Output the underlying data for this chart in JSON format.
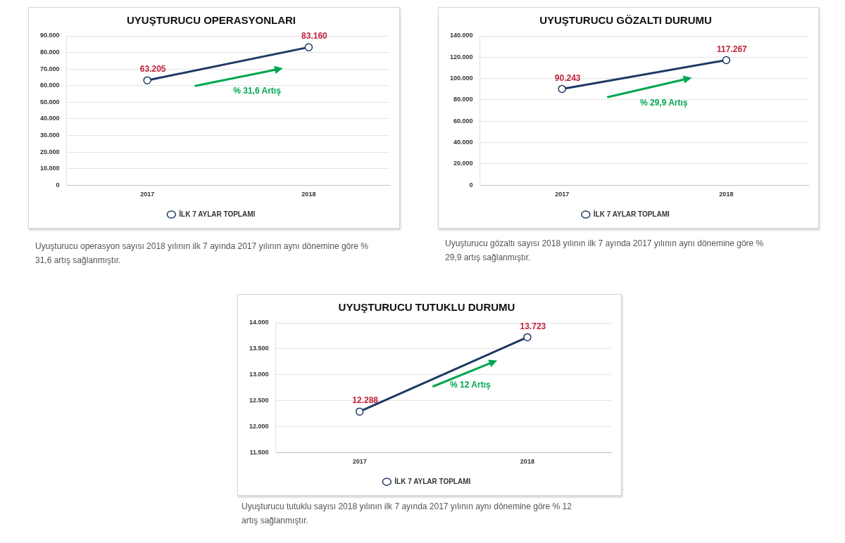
{
  "chart_data": [
    {
      "type": "line",
      "title": "UYUŞTURUCU OPERASYONLARI",
      "categories": [
        "2017",
        "2018"
      ],
      "series": [
        {
          "name": "İLK 7 AYLAR TOPLAMI",
          "color": "#1f3864",
          "values": [
            63205,
            83160
          ],
          "value_labels": [
            "63.205",
            "83.160"
          ]
        }
      ],
      "ylim": [
        0,
        90000
      ],
      "yticks": [
        0,
        {
          "value": 10000,
          "label": "10.000"
        },
        {
          "value": 20000,
          "label": "20.000"
        },
        {
          "value": 30000,
          "label": "30.000"
        },
        {
          "value": 40000,
          "label": "40.000"
        },
        {
          "value": 50000,
          "label": "50.000"
        },
        {
          "value": 60000,
          "label": "60.000"
        },
        {
          "value": 70000,
          "label": "70.000"
        },
        {
          "value": 80000,
          "label": "80.000"
        },
        {
          "value": 90000,
          "label": "90.000"
        }
      ],
      "grid": "y",
      "legend": "bottom",
      "marker": "circle",
      "line_style": "solid",
      "annotations": [
        "% 31,6 Artış",
        "Uyuşturucu operasyon sayısı 2018 yılının ilk 7 ayında 2017 yılının aynı dönemine göre % 31,6 artış sağlanmıştır."
      ]
    },
    {
      "type": "line",
      "title": "UYUŞTURUCU GÖZALTI DURUMU",
      "categories": [
        "2017",
        "2018"
      ],
      "series": [
        {
          "name": "İLK 7 AYLAR TOPLAMI",
          "color": "#1f3864",
          "values": [
            90243,
            117267
          ],
          "value_labels": [
            "90.243",
            "117.267"
          ]
        }
      ],
      "ylim": [
        0,
        140000
      ],
      "yticks": [
        0,
        {
          "value": 20000,
          "label": "20.000"
        },
        {
          "value": 40000,
          "label": "40.000"
        },
        {
          "value": 60000,
          "label": "60.000"
        },
        {
          "value": 80000,
          "label": "80.000"
        },
        {
          "value": 100000,
          "label": "100.000"
        },
        {
          "value": 120000,
          "label": "120.000"
        },
        {
          "value": 140000,
          "label": "140.000"
        }
      ],
      "grid": "y",
      "legend": "bottom",
      "marker": "circle",
      "line_style": "solid",
      "annotations": [
        "% 29,9 Artış",
        "Uyuşturucu gözaltı sayısı 2018 yılının ilk 7 ayında 2017 yılının aynı dönemine göre % 29,9 artış sağlanmıştır."
      ]
    },
    {
      "type": "line",
      "title": "UYUŞTURUCU TUTUKLU DURUMU",
      "categories": [
        "2017",
        "2018"
      ],
      "series": [
        {
          "name": "İLK 7 AYLAR TOPLAMI",
          "color": "#1f3864",
          "values": [
            12288,
            13723
          ],
          "value_labels": [
            "12.288",
            "13.723"
          ]
        }
      ],
      "ylim": [
        11500,
        14000
      ],
      "yticks": [
        {
          "value": 11500,
          "label": "11.500"
        },
        {
          "value": 12000,
          "label": "12.000"
        },
        {
          "value": 12500,
          "label": "12.500"
        },
        {
          "value": 13000,
          "label": "13.000"
        },
        {
          "value": 13500,
          "label": "13.500"
        },
        {
          "value": 14000,
          "label": "14.000"
        }
      ],
      "grid": "y",
      "legend": "bottom",
      "marker": "circle",
      "line_style": "solid",
      "annotations": [
        "% 12 Artış",
        "Uyuşturucu tutuklu sayısı 2018 yılının ilk 7 ayında 2017 yılının aynı dönemine göre % 12 artış sağlanmıştır."
      ]
    }
  ]
}
